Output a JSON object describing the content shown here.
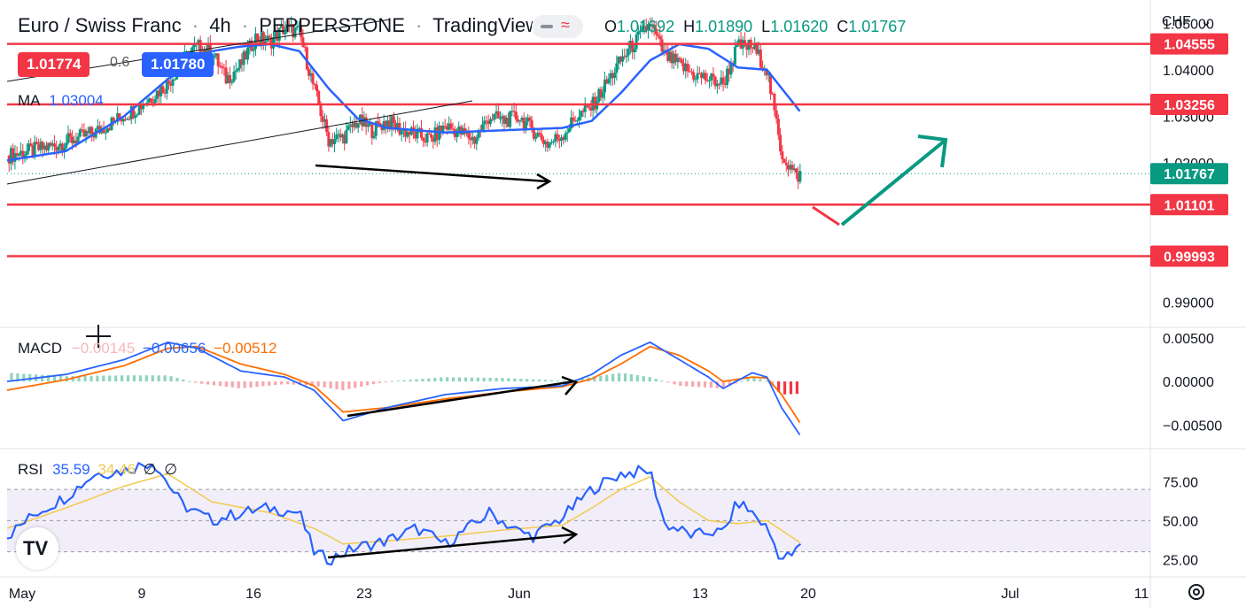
{
  "header": {
    "symbol": "Euro / Swiss Franc",
    "sep1": "·",
    "interval": "4h",
    "sep2": "·",
    "exchange": "PEPPERSTONE",
    "sep3": "·",
    "source": "TradingView"
  },
  "ohlc": {
    "o_label": "O",
    "o": "1.01692",
    "h_label": "H",
    "h": "1.01890",
    "l_label": "L",
    "l": "1.01620",
    "c_label": "C",
    "c": "1.01767"
  },
  "quote": {
    "bid": "1.01774",
    "spread": "0.6",
    "ask": "1.01780"
  },
  "currency_button": "CHF",
  "colors": {
    "up": "#089981",
    "down": "#f23645",
    "ma": "#2962ff",
    "signal": "#ff6d00",
    "rsi": "#2962ff",
    "rsi_ma": "#f2c94c",
    "level": "#f23645",
    "arrow": "#089981"
  },
  "icons": [
    "minus-icon",
    "wave-icon",
    "chevron-down-icon",
    "settings-gear-icon",
    "crosshair-icon",
    "tradingview-logo-icon"
  ],
  "indicators": {
    "ma": {
      "name": "MA",
      "value": "1.03004"
    },
    "macd": {
      "name": "MACD",
      "hist": "−0.00145",
      "macd": "−0.00656",
      "signal": "−0.00512"
    },
    "rsi": {
      "name": "RSI",
      "value": "35.59",
      "ma": "34.46",
      "x1": "∅",
      "x2": "∅"
    }
  },
  "logo_text": "TV",
  "chart_data": [
    {
      "type": "candlestick",
      "pane": "price",
      "ylim": [
        0.985,
        1.055
      ],
      "y_ticks": [
        "1.05000",
        "1.04000",
        "1.03000",
        "1.02000",
        "0.99000"
      ],
      "x_ticks": [
        "May",
        "9",
        "16",
        "23",
        "Jun",
        "13",
        "20",
        "Jul",
        "11"
      ],
      "current_price": "1.01767",
      "levels": [
        {
          "value": 1.04555,
          "label": "1.04555"
        },
        {
          "value": 1.03256,
          "label": "1.03256"
        },
        {
          "value": 1.01101,
          "label": "1.01101"
        },
        {
          "value": 0.99993,
          "label": "0.99993"
        }
      ],
      "close_path": [
        [
          0,
          1.0215
        ],
        [
          3,
          1.0235
        ],
        [
          6,
          1.0265
        ],
        [
          9,
          1.032
        ],
        [
          11,
          1.037
        ],
        [
          12,
          1.042
        ],
        [
          13,
          1.045
        ],
        [
          14,
          1.044
        ],
        [
          15,
          1.038
        ],
        [
          16,
          1.041
        ],
        [
          17,
          1.047
        ],
        [
          18,
          1.046
        ],
        [
          19,
          1.049
        ],
        [
          20,
          1.048
        ],
        [
          21,
          1.036
        ],
        [
          22,
          1.025
        ],
        [
          23,
          1.0255
        ],
        [
          24,
          1.029
        ],
        [
          25,
          1.027
        ],
        [
          26,
          1.029
        ],
        [
          27,
          1.027
        ],
        [
          28,
          1.026
        ],
        [
          29,
          1.025
        ],
        [
          30,
          1.028
        ],
        [
          32,
          1.025
        ],
        [
          33,
          1.03
        ],
        [
          34,
          1.029
        ],
        [
          35,
          1.03
        ],
        [
          36,
          1.027
        ],
        [
          37,
          1.024
        ],
        [
          38,
          1.026
        ],
        [
          39,
          1.03
        ],
        [
          40,
          1.032
        ],
        [
          41,
          1.037
        ],
        [
          42,
          1.042
        ],
        [
          43,
          1.046
        ],
        [
          44,
          1.05
        ],
        [
          45,
          1.043
        ],
        [
          46,
          1.041
        ],
        [
          47,
          1.039
        ],
        [
          48,
          1.038
        ],
        [
          49,
          1.037
        ],
        [
          50,
          1.045
        ],
        [
          51,
          1.045
        ],
        [
          52,
          1.04
        ],
        [
          53,
          1.022
        ],
        [
          54,
          1.017
        ],
        [
          54.4,
          1.01767
        ]
      ],
      "ma_path": [
        [
          0,
          1.0205
        ],
        [
          4,
          1.0225
        ],
        [
          8,
          1.03
        ],
        [
          11,
          1.038
        ],
        [
          14,
          1.044
        ],
        [
          16,
          1.045
        ],
        [
          18,
          1.0455
        ],
        [
          20,
          1.044
        ],
        [
          22,
          1.036
        ],
        [
          24,
          1.0295
        ],
        [
          26,
          1.0275
        ],
        [
          30,
          1.0265
        ],
        [
          34,
          1.027
        ],
        [
          38,
          1.0275
        ],
        [
          40,
          1.029
        ],
        [
          42,
          1.035
        ],
        [
          44,
          1.042
        ],
        [
          46,
          1.0455
        ],
        [
          48,
          1.0445
        ],
        [
          50,
          1.0405
        ],
        [
          52,
          1.04
        ],
        [
          54.4,
          1.0305
        ]
      ]
    },
    {
      "type": "line",
      "pane": "macd",
      "ylim": [
        -0.0075,
        0.006
      ],
      "y_ticks": [
        "0.00500",
        "0.00000",
        "−0.00500"
      ],
      "series": [
        {
          "values": [
            [
              0,
              0.0
            ],
            [
              4,
              0.0008
            ],
            [
              8,
              0.0025
            ],
            [
              11,
              0.0045
            ],
            [
              13,
              0.0038
            ],
            [
              16,
              0.0012
            ],
            [
              19,
              0.0005
            ],
            [
              21,
              -0.001
            ],
            [
              23,
              -0.0045
            ],
            [
              26,
              -0.003
            ],
            [
              30,
              -0.0015
            ],
            [
              34,
              -0.0008
            ],
            [
              38,
              -0.0005
            ],
            [
              40,
              0.0008
            ],
            [
              42,
              0.003
            ],
            [
              44,
              0.0045
            ],
            [
              46,
              0.0025
            ],
            [
              48,
              0.0005
            ],
            [
              49,
              -0.0008
            ],
            [
              51,
              0.001
            ],
            [
              52,
              0.0005
            ],
            [
              53,
              -0.003
            ],
            [
              54.4,
              -0.0065
            ]
          ]
        },
        {
          "values": [
            [
              0,
              -0.001
            ],
            [
              4,
              0.0002
            ],
            [
              8,
              0.0018
            ],
            [
              11,
              0.0038
            ],
            [
              13,
              0.004
            ],
            [
              16,
              0.002
            ],
            [
              19,
              0.0008
            ],
            [
              21,
              -0.0005
            ],
            [
              23,
              -0.0035
            ],
            [
              26,
              -0.003
            ],
            [
              30,
              -0.002
            ],
            [
              34,
              -0.0012
            ],
            [
              38,
              -0.0006
            ],
            [
              40,
              0.0003
            ],
            [
              42,
              0.002
            ],
            [
              44,
              0.004
            ],
            [
              46,
              0.003
            ],
            [
              48,
              0.0012
            ],
            [
              49,
              0.0
            ],
            [
              51,
              0.0005
            ],
            [
              52,
              0.0004
            ],
            [
              53,
              -0.0015
            ],
            [
              54.4,
              -0.0051
            ]
          ]
        }
      ]
    },
    {
      "type": "line",
      "pane": "rsi",
      "ylim": [
        15,
        95
      ],
      "y_ticks": [
        "75.00",
        "50.00",
        "25.00"
      ],
      "bands": [
        30,
        70
      ],
      "mid": 50,
      "series": [
        {
          "values": [
            [
              0,
              40
            ],
            [
              2,
              55
            ],
            [
              4,
              65
            ],
            [
              6,
              80
            ],
            [
              8,
              82
            ],
            [
              10,
              88
            ],
            [
              12,
              60
            ],
            [
              14,
              50
            ],
            [
              16,
              55
            ],
            [
              18,
              58
            ],
            [
              20,
              55
            ],
            [
              21,
              30
            ],
            [
              22,
              25
            ],
            [
              24,
              33
            ],
            [
              26,
              37
            ],
            [
              28,
              45
            ],
            [
              30,
              35
            ],
            [
              32,
              48
            ],
            [
              33,
              55
            ],
            [
              35,
              43
            ],
            [
              36,
              40
            ],
            [
              38,
              52
            ],
            [
              40,
              70
            ],
            [
              42,
              80
            ],
            [
              44,
              82
            ],
            [
              45,
              48
            ],
            [
              47,
              40
            ],
            [
              48,
              43
            ],
            [
              49,
              42
            ],
            [
              50,
              62
            ],
            [
              51,
              55
            ],
            [
              52,
              45
            ],
            [
              53,
              25
            ],
            [
              54,
              30
            ],
            [
              54.4,
              36
            ]
          ]
        },
        {
          "values": [
            [
              0,
              45
            ],
            [
              4,
              58
            ],
            [
              8,
              72
            ],
            [
              11,
              80
            ],
            [
              14,
              62
            ],
            [
              18,
              55
            ],
            [
              21,
              45
            ],
            [
              23,
              35
            ],
            [
              26,
              37
            ],
            [
              30,
              40
            ],
            [
              34,
              44
            ],
            [
              38,
              47
            ],
            [
              40,
              58
            ],
            [
              42,
              70
            ],
            [
              44,
              78
            ],
            [
              46,
              62
            ],
            [
              48,
              50
            ],
            [
              50,
              48
            ],
            [
              52,
              50
            ],
            [
              54.4,
              35
            ]
          ]
        }
      ]
    }
  ]
}
